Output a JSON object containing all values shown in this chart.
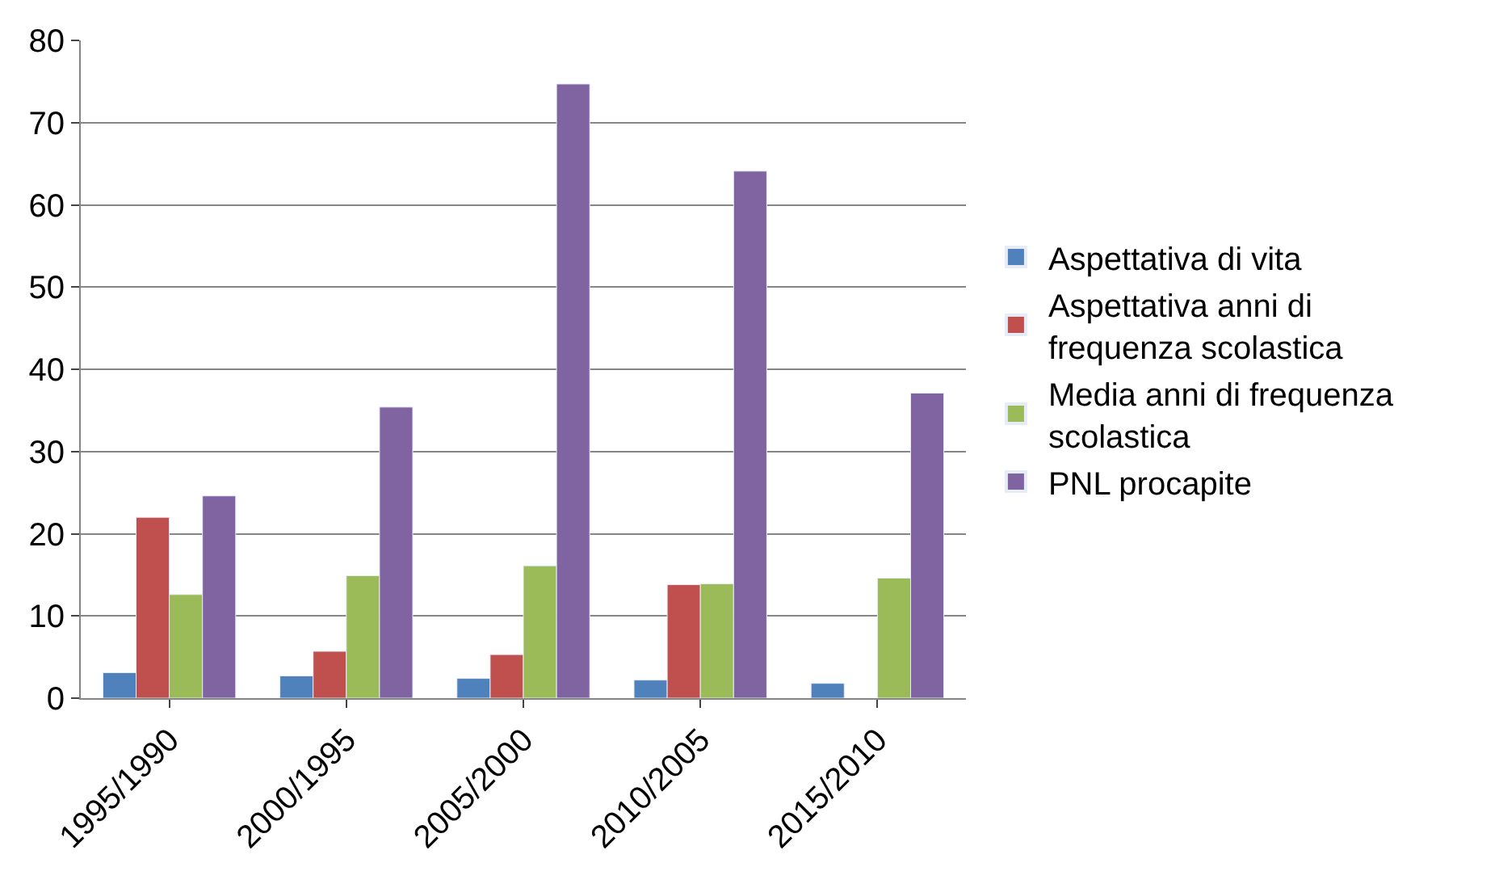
{
  "chart_data": {
    "type": "bar",
    "categories": [
      "1995/1990",
      "2000/1995",
      "2005/2000",
      "2010/2005",
      "2015/2010"
    ],
    "series": [
      {
        "name": "Aspettativa di vita",
        "color": "#4f81bd",
        "values": [
          3.1,
          2.7,
          2.4,
          2.2,
          1.8
        ]
      },
      {
        "name": "Aspettativa anni di frequenza scolastica",
        "color": "#c0504d",
        "values": [
          22,
          5.7,
          5.3,
          13.8,
          null
        ]
      },
      {
        "name": "Media anni di frequenza scolastica",
        "color": "#9bbb59",
        "values": [
          12.6,
          14.9,
          16.1,
          13.9,
          14.6
        ]
      },
      {
        "name": "PNL procapite",
        "color": "#8064a2",
        "values": [
          24.6,
          35.4,
          74.7,
          64.1,
          37.1
        ]
      }
    ],
    "ylim": [
      0,
      80
    ],
    "yticks": [
      0,
      10,
      20,
      30,
      40,
      50,
      60,
      70,
      80
    ],
    "grid": "y",
    "legend": "right"
  }
}
